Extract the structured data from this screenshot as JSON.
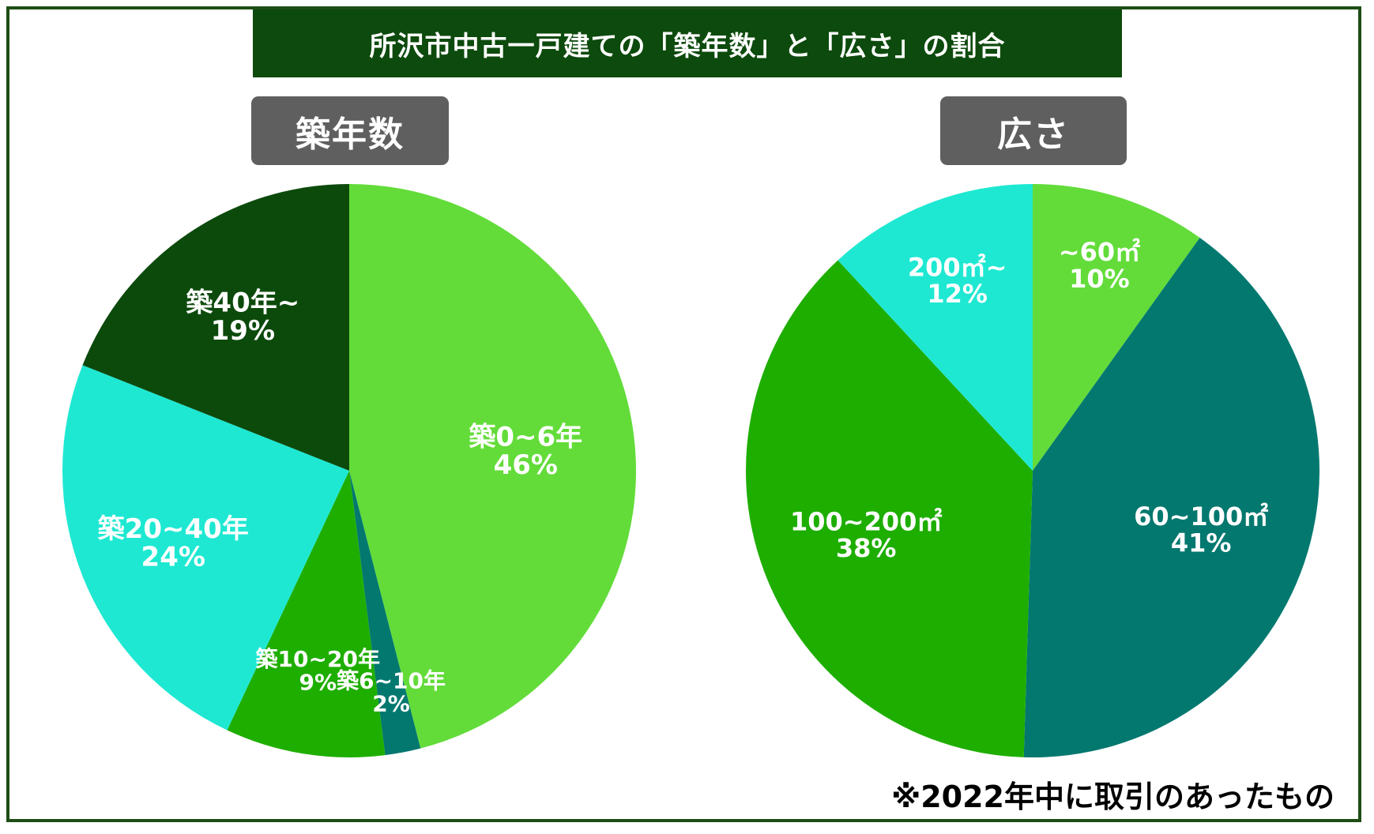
{
  "title": "所沢市中古一戸建ての「築年数」と「広さ」の割合",
  "note": "※2022年中に取引のあったもの",
  "chart_data": [
    {
      "type": "pie",
      "title": "築年数",
      "slices": [
        {
          "label": "築0~6年",
          "value": 46,
          "display": "46%",
          "color": "#63dc3a"
        },
        {
          "label": "築6~10年",
          "value": 2,
          "display": "2%",
          "color": "#03786f"
        },
        {
          "label": "築10~20年",
          "value": 9,
          "display": "9%",
          "color": "#1eae00"
        },
        {
          "label": "築20~40年",
          "value": 24,
          "display": "24%",
          "color": "#1ee8d2"
        },
        {
          "label": "築40年~",
          "value": 19,
          "display": "19%",
          "color": "#0c4a0c"
        }
      ]
    },
    {
      "type": "pie",
      "title": "広さ",
      "slices": [
        {
          "label": "~60㎡",
          "value": 10,
          "display": "10%",
          "color": "#63dc3a"
        },
        {
          "label": "60~100㎡",
          "value": 41,
          "display": "41%",
          "color": "#03786f"
        },
        {
          "label": "100~200㎡",
          "value": 38,
          "display": "38%",
          "color": "#1eae00"
        },
        {
          "label": "200㎡~",
          "value": 12,
          "display": "12%",
          "color": "#1ee8d2"
        }
      ]
    }
  ]
}
